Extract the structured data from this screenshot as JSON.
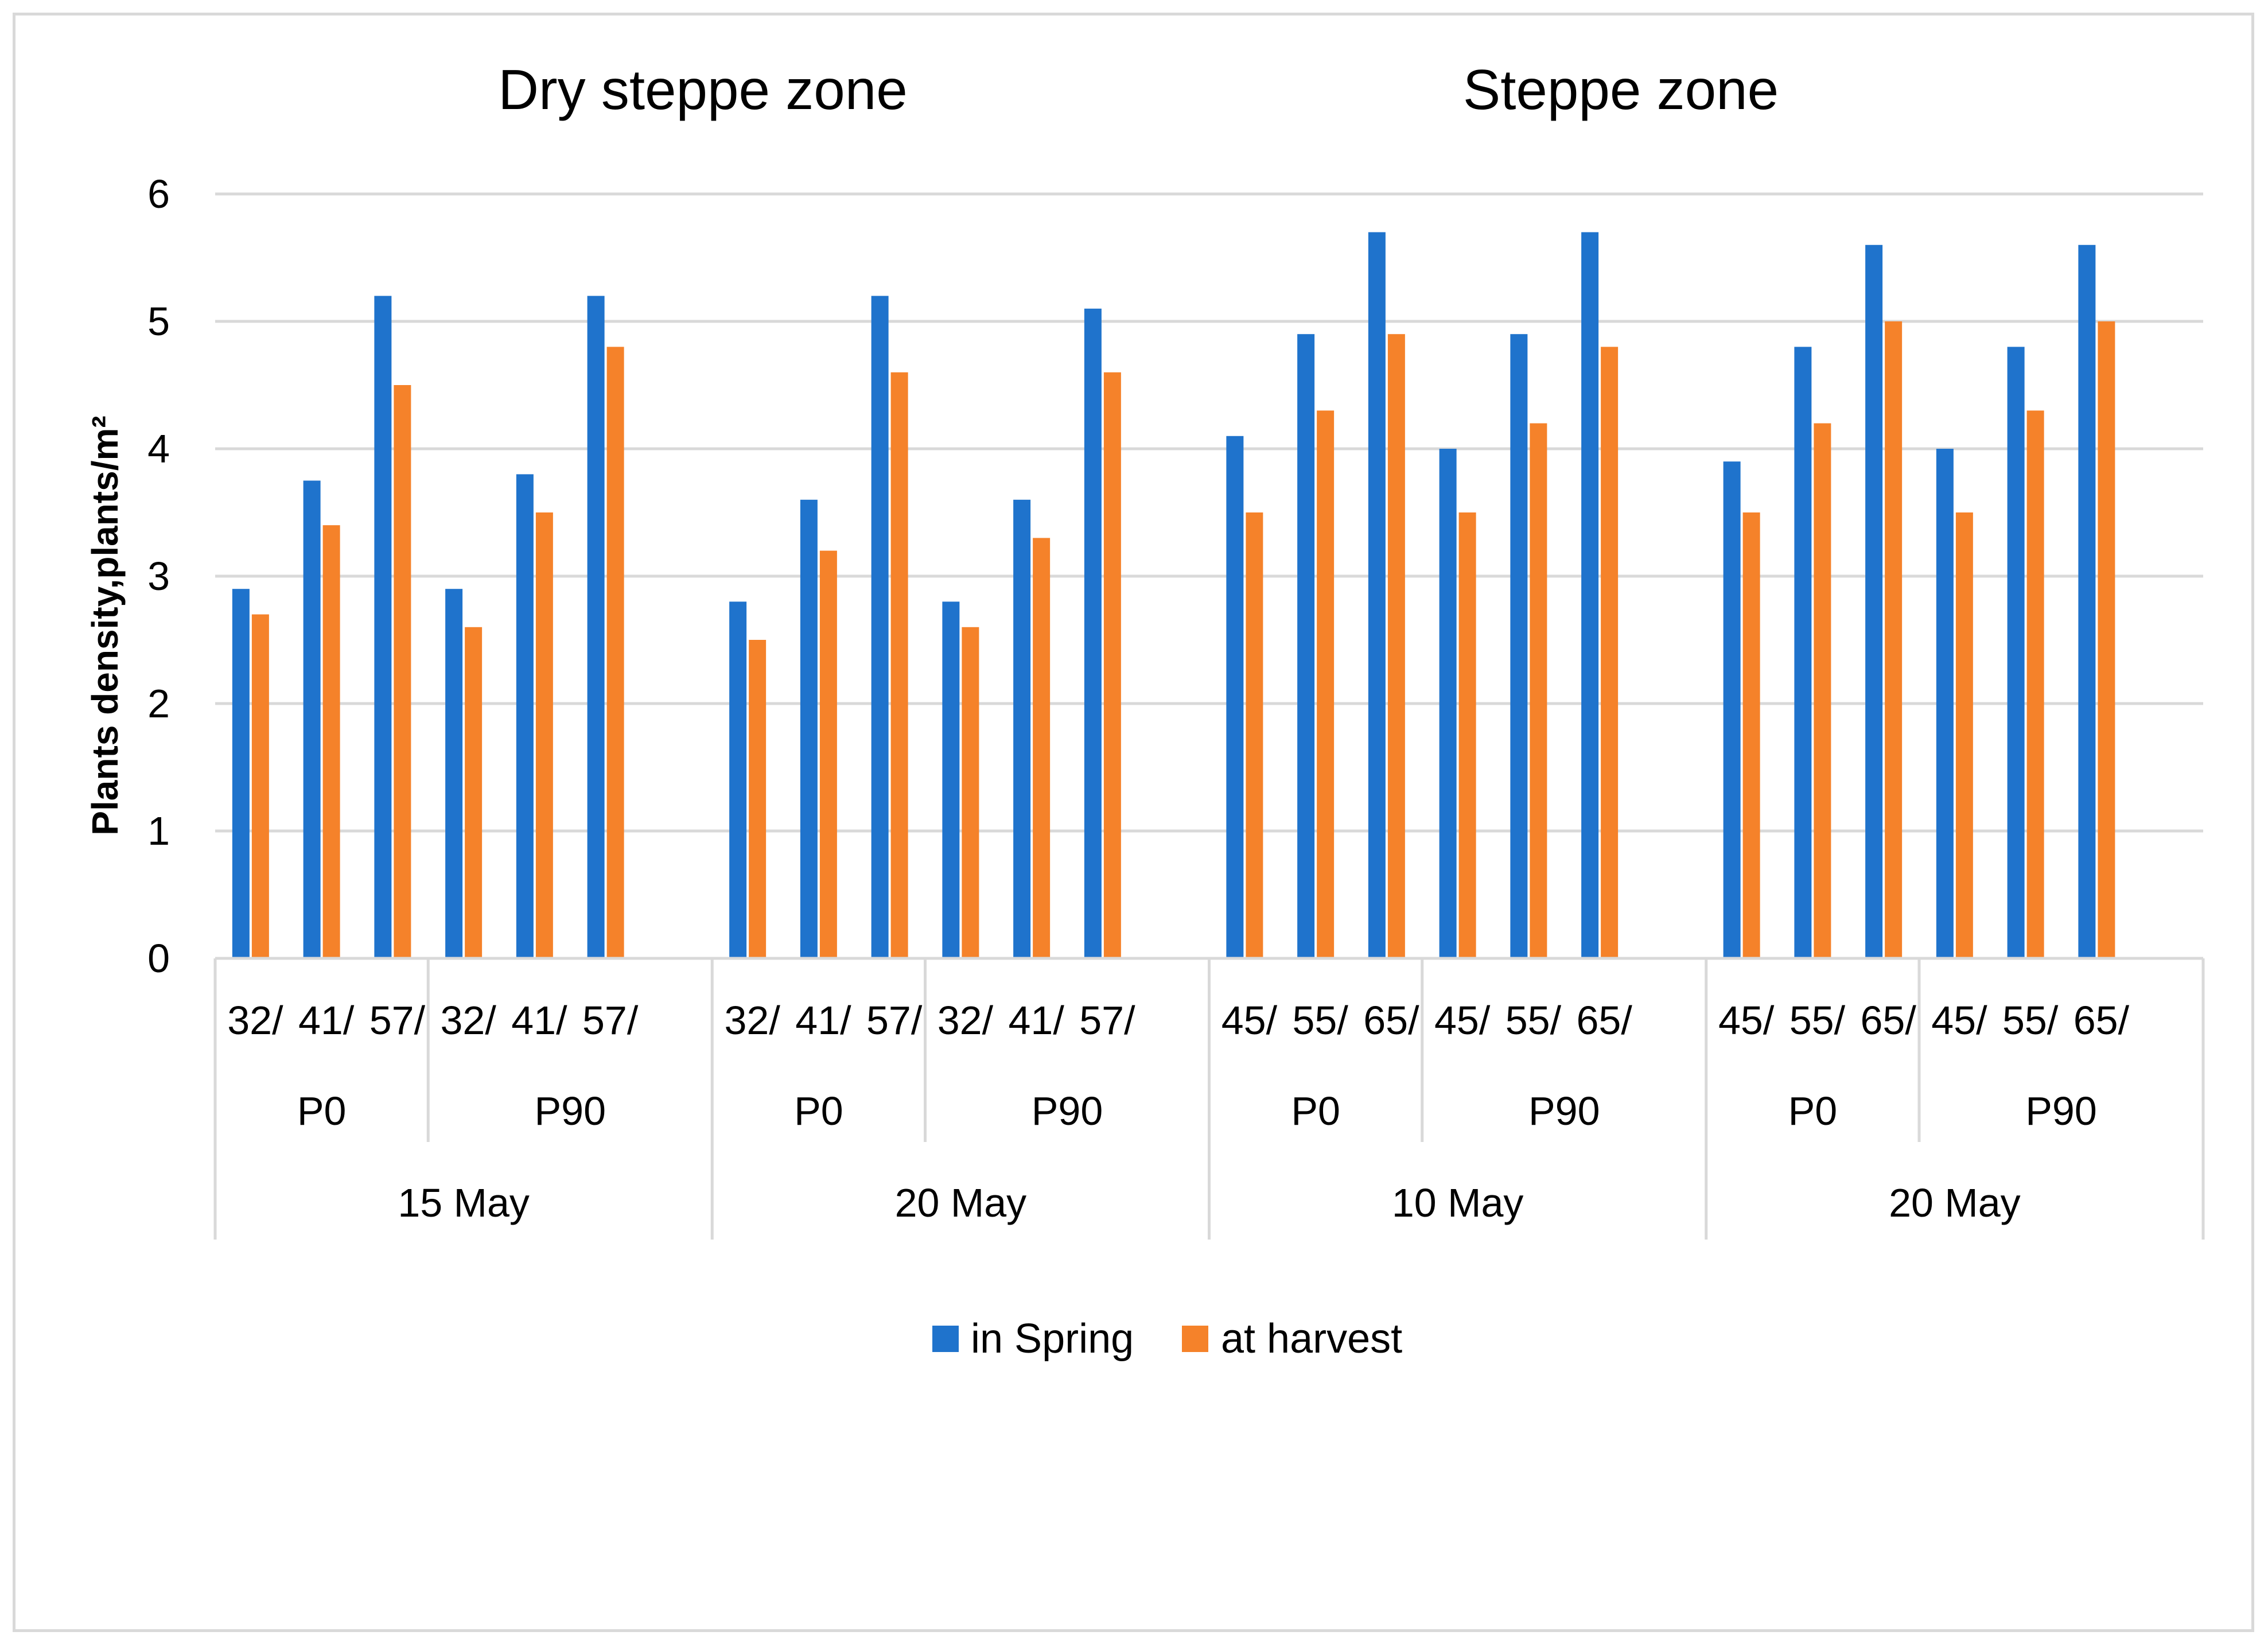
{
  "chart_data": {
    "type": "bar",
    "titles": [
      "Dry steppe zone",
      "Steppe zone"
    ],
    "ylabel": "Plants density,plants/m²",
    "ylim": [
      0,
      6
    ],
    "yticks": [
      "0",
      "1",
      "2",
      "3",
      "4",
      "5",
      "6"
    ],
    "grid": true,
    "legend_position": "bottom",
    "colors": {
      "in_spring": "#1f73cc",
      "at_harvest": "#f5822a",
      "grid": "#d9d9d9"
    },
    "groups": [
      {
        "date": "15 May",
        "subgroups": [
          {
            "fert": "P0",
            "categories": [
              "32/",
              "41/",
              "57/"
            ]
          },
          {
            "fert": "P90",
            "categories": [
              "32/",
              "41/",
              "57/"
            ]
          }
        ]
      },
      {
        "date": "20 May",
        "subgroups": [
          {
            "fert": "P0",
            "categories": [
              "32/",
              "41/",
              "57/"
            ]
          },
          {
            "fert": "P90",
            "categories": [
              "32/",
              "41/",
              "57/"
            ]
          }
        ]
      },
      {
        "date": "10 May",
        "subgroups": [
          {
            "fert": "P0",
            "categories": [
              "45/",
              "55/",
              "65/"
            ]
          },
          {
            "fert": "P90",
            "categories": [
              "45/",
              "55/",
              "65/"
            ]
          }
        ]
      },
      {
        "date": "20 May",
        "subgroups": [
          {
            "fert": "P0",
            "categories": [
              "45/",
              "55/",
              "65/"
            ]
          },
          {
            "fert": "P90",
            "categories": [
              "45/",
              "55/",
              "65/"
            ]
          }
        ]
      }
    ],
    "series": [
      {
        "name": "in Spring",
        "values": [
          2.9,
          3.75,
          5.2,
          2.9,
          3.8,
          5.2,
          2.8,
          3.6,
          5.2,
          2.8,
          3.6,
          5.1,
          4.1,
          4.9,
          5.7,
          4.0,
          4.9,
          5.7,
          3.9,
          4.8,
          5.6,
          4.0,
          4.8,
          5.6
        ]
      },
      {
        "name": "at harvest",
        "values": [
          2.7,
          3.4,
          4.5,
          2.6,
          3.5,
          4.8,
          2.5,
          3.2,
          4.6,
          2.6,
          3.3,
          4.6,
          3.5,
          4.3,
          4.9,
          3.5,
          4.2,
          4.8,
          3.5,
          4.2,
          5.0,
          3.5,
          4.3,
          5.0
        ]
      }
    ]
  }
}
